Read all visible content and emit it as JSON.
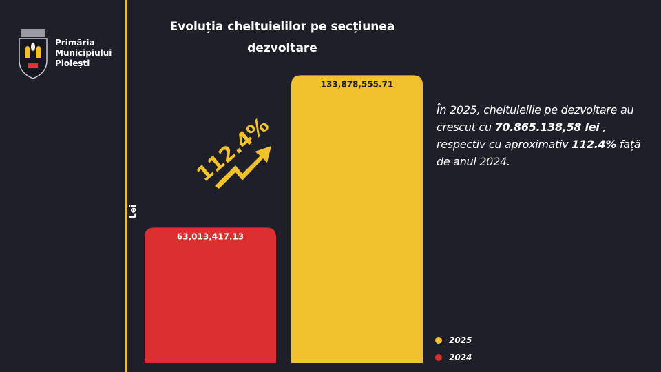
{
  "brand": {
    "line1": "Primăria",
    "line2": "Municipiului",
    "line3": "Ploiești"
  },
  "chart_data": {
    "type": "bar",
    "title": "Evoluția cheltuielilor pe secțiunea dezvoltare",
    "title_line1": "Evoluția cheltuielilor pe secțiunea",
    "title_line2": "dezvoltare",
    "ylabel": "Lei",
    "xlabel": "",
    "categories": [
      "2024",
      "2025"
    ],
    "values": [
      63013417.13,
      133878555.71
    ],
    "value_labels": [
      "63,013,417.13",
      "133,878,555.71"
    ],
    "colors": [
      "#dc3030",
      "#f2c12e"
    ],
    "ylim": [
      0,
      134000000
    ],
    "legend": [
      {
        "label": "2025",
        "color": "#f2c12e"
      },
      {
        "label": "2024",
        "color": "#dc3030"
      }
    ],
    "legend_position": "bottom-right",
    "annotation": "112.4%"
  },
  "description": {
    "part1": "În 2025, cheltuielile pe dezvoltare au crescut cu ",
    "amount": "70.865.138,58 lei",
    "part2": " , respectiv cu aproximativ ",
    "percent": "112.4%",
    "part3": " față de anul 2024."
  }
}
